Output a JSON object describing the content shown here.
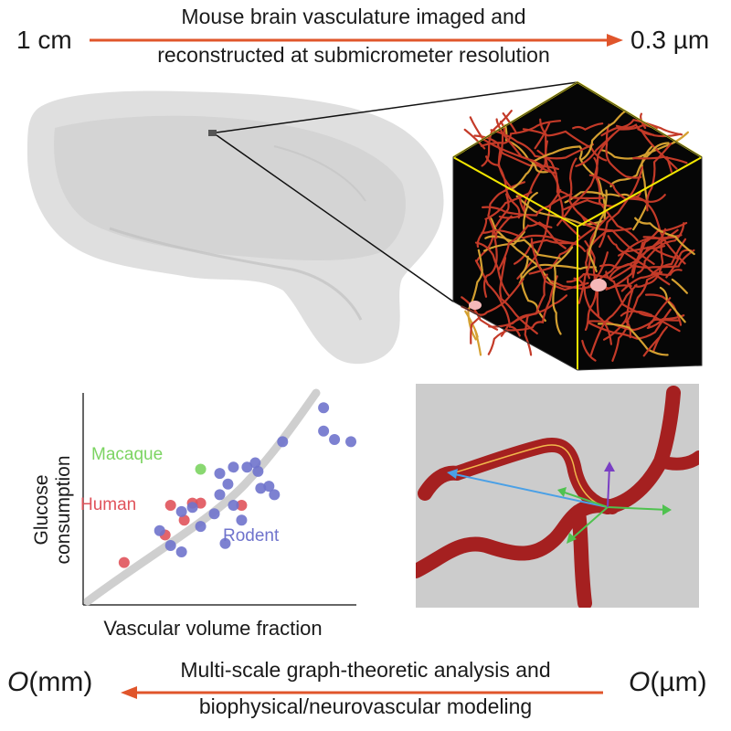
{
  "header": {
    "left_scale": "1 cm",
    "right_scale": "0.3 µm",
    "line1": "Mouse brain vasculature imaged and",
    "line2": "reconstructed at submicrometer resolution"
  },
  "footer": {
    "left_symbol": "O",
    "left_unit": "(mm)",
    "right_symbol": "O",
    "right_unit": "(µm)",
    "line1": "Multi-scale graph-theoretic analysis and",
    "line2": "biophysical/neurovascular modeling"
  },
  "colors": {
    "arrow": "#e0552b",
    "human": "#e0535b",
    "macaque": "#7cd462",
    "rodent": "#6f73cc",
    "cube_edge": "#f2e600",
    "vessel": "#c42a26"
  },
  "chart_data": {
    "type": "scatter",
    "title": "",
    "xlabel": "Vascular volume fraction",
    "ylabel_line1": "Glucose",
    "ylabel_line2": "consumption",
    "grid": false,
    "trend": "increasing curve (grey band)",
    "series": [
      {
        "name": "Macaque",
        "color": "#7cd462",
        "points": [
          [
            0.43,
            0.64
          ]
        ]
      },
      {
        "name": "Human",
        "color": "#e0535b",
        "points": [
          [
            0.15,
            0.2
          ],
          [
            0.3,
            0.33
          ],
          [
            0.32,
            0.47
          ],
          [
            0.37,
            0.4
          ],
          [
            0.4,
            0.48
          ],
          [
            0.58,
            0.47
          ],
          [
            0.43,
            0.48
          ]
        ]
      },
      {
        "name": "Rodent",
        "color": "#6f73cc",
        "points": [
          [
            0.28,
            0.35
          ],
          [
            0.32,
            0.28
          ],
          [
            0.36,
            0.25
          ],
          [
            0.36,
            0.44
          ],
          [
            0.4,
            0.46
          ],
          [
            0.43,
            0.37
          ],
          [
            0.48,
            0.43
          ],
          [
            0.5,
            0.52
          ],
          [
            0.5,
            0.62
          ],
          [
            0.53,
            0.57
          ],
          [
            0.55,
            0.65
          ],
          [
            0.55,
            0.47
          ],
          [
            0.58,
            0.4
          ],
          [
            0.6,
            0.65
          ],
          [
            0.63,
            0.67
          ],
          [
            0.64,
            0.63
          ],
          [
            0.65,
            0.55
          ],
          [
            0.68,
            0.56
          ],
          [
            0.7,
            0.52
          ],
          [
            0.73,
            0.77
          ],
          [
            0.88,
            0.93
          ],
          [
            0.88,
            0.82
          ],
          [
            0.92,
            0.78
          ],
          [
            0.98,
            0.77
          ],
          [
            0.52,
            0.29
          ]
        ]
      }
    ],
    "labels": {
      "macaque": "Macaque",
      "human": "Human",
      "rodent": "Rodent"
    }
  }
}
